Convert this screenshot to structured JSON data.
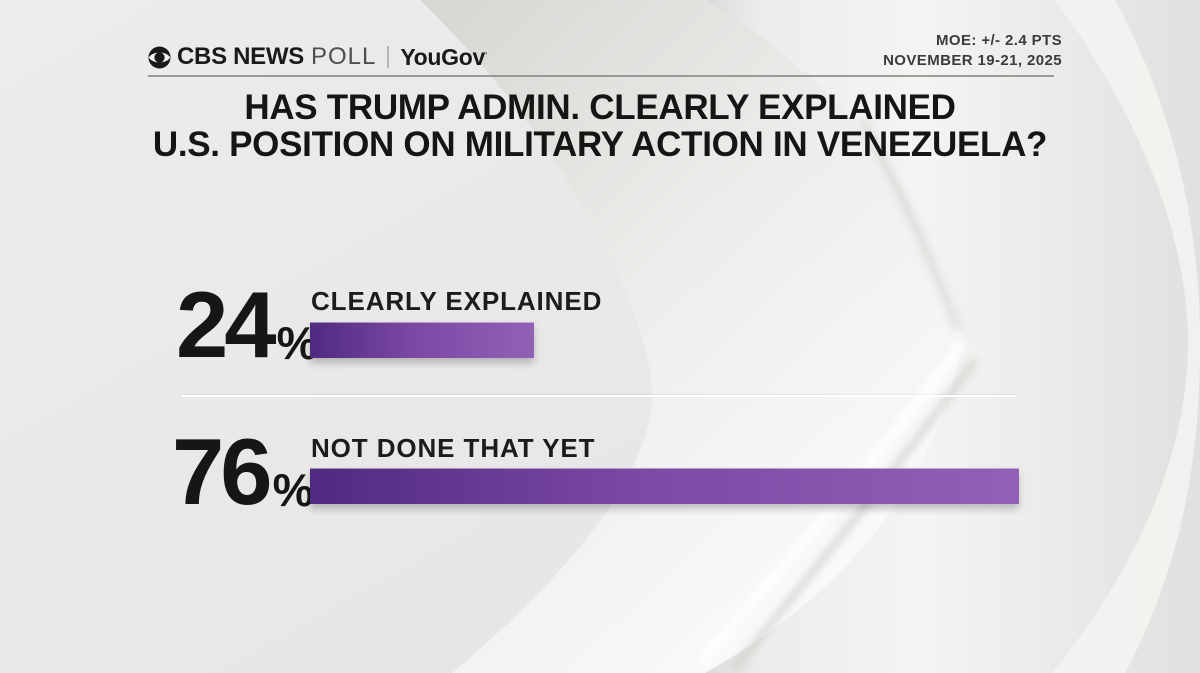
{
  "header": {
    "logo_cbs": "CBS NEWS",
    "logo_poll": "POLL",
    "logo_partner": "YouGov",
    "logo_partner_mark": "'",
    "moe": "MOE: +/- 2.4 PTS",
    "dates": "NOVEMBER 19-21, 2025"
  },
  "title": {
    "line1": "HAS TRUMP ADMIN. CLEARLY EXPLAINED",
    "line2": "U.S. POSITION ON MILITARY ACTION IN VENEZUELA?"
  },
  "rows": [
    {
      "pct": "24",
      "sign": "%",
      "label": "CLEARLY EXPLAINED",
      "value": 24
    },
    {
      "pct": "76",
      "sign": "%",
      "label": "NOT DONE THAT YET",
      "value": 76
    }
  ],
  "chart_data": {
    "type": "bar",
    "orientation": "horizontal",
    "title": "HAS TRUMP ADMIN. CLEARLY EXPLAINED U.S. POSITION ON MILITARY ACTION IN VENEZUELA?",
    "categories": [
      "CLEARLY EXPLAINED",
      "NOT DONE THAT YET"
    ],
    "values": [
      24,
      76
    ],
    "value_labels": [
      "24%",
      "76%"
    ],
    "unit": "percent",
    "xlim": [
      0,
      100
    ],
    "grid": false,
    "legend": false,
    "bar_gradient": [
      "#4f2a80",
      "#7b48a4",
      "#9161b6"
    ],
    "source": "CBS NEWS POLL | YouGov",
    "margin_of_error": "MOE: +/- 2.4 PTS",
    "field_dates": "NOVEMBER 19-21, 2025"
  },
  "colors": {
    "background": "#e9e8e6",
    "bar-dark": "#4f2a80",
    "bar-mid": "#7b48a4",
    "bar-light": "#9161b6",
    "text": "#151514",
    "meta-text": "#3c3b39",
    "rule": "#8d8c8a"
  }
}
